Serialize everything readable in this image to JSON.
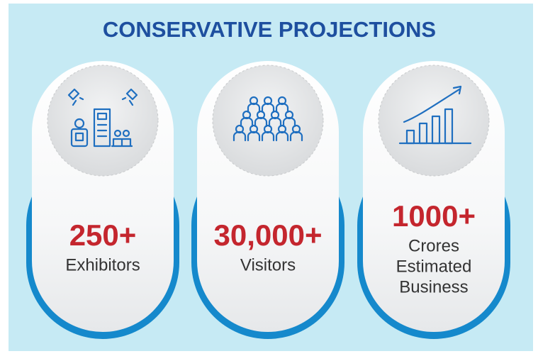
{
  "title": "CONSERVATIVE PROJECTIONS",
  "cards": [
    {
      "value": "250+",
      "label": [
        "Exhibitors"
      ]
    },
    {
      "value": "30,000+",
      "label": [
        "Visitors"
      ]
    },
    {
      "value": "1000+",
      "label": [
        "Crores",
        "Estimated",
        "Business"
      ]
    }
  ]
}
